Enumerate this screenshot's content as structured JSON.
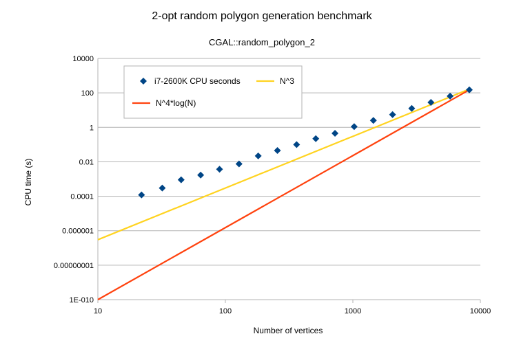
{
  "chart_data": {
    "type": "scatter",
    "title": "2-opt random polygon generation benchmark",
    "subtitle": "CGAL::random_polygon_2",
    "xlabel": "Number of vertices",
    "ylabel": "CPU time (s)",
    "x_scale": "log",
    "y_scale": "log",
    "xlim": [
      10,
      10000
    ],
    "ylim": [
      1e-10,
      10000
    ],
    "x_ticks": [
      10,
      100,
      1000,
      10000
    ],
    "x_tick_labels": [
      "10",
      "100",
      "1000",
      "10000"
    ],
    "y_ticks": [
      1e-10,
      1e-08,
      1e-06,
      0.0001,
      0.01,
      1,
      100,
      10000
    ],
    "y_tick_labels": [
      "1E-010",
      "0.00000001",
      "0.000001",
      "0.0001",
      "0.01",
      "1",
      "100",
      "10000"
    ],
    "grid": "horizontal",
    "legend_position": "top-left",
    "series": [
      {
        "name": "i7-2600K CPU seconds",
        "kind": "points",
        "marker": "diamond",
        "color": "#004586",
        "points": [
          [
            22,
            0.00012
          ],
          [
            32,
            0.0003
          ],
          [
            45,
            0.0009
          ],
          [
            64,
            0.0017
          ],
          [
            90,
            0.0037
          ],
          [
            128,
            0.0075
          ],
          [
            181,
            0.022
          ],
          [
            256,
            0.045
          ],
          [
            362,
            0.1
          ],
          [
            512,
            0.22
          ],
          [
            724,
            0.45
          ],
          [
            1024,
            1.1
          ],
          [
            1448,
            2.5
          ],
          [
            2048,
            5.5
          ],
          [
            2896,
            12.5
          ],
          [
            4096,
            28
          ],
          [
            5792,
            65
          ],
          [
            8192,
            150
          ]
        ]
      },
      {
        "name": "N^3",
        "kind": "line",
        "color": "#ffd320",
        "points": [
          [
            10,
            3e-07
          ],
          [
            8192,
            165
          ]
        ]
      },
      {
        "name": "N^4*log(N)",
        "kind": "line",
        "color": "#ff420e",
        "points": [
          [
            10,
            1e-10
          ],
          [
            8192,
            150
          ]
        ]
      }
    ]
  }
}
